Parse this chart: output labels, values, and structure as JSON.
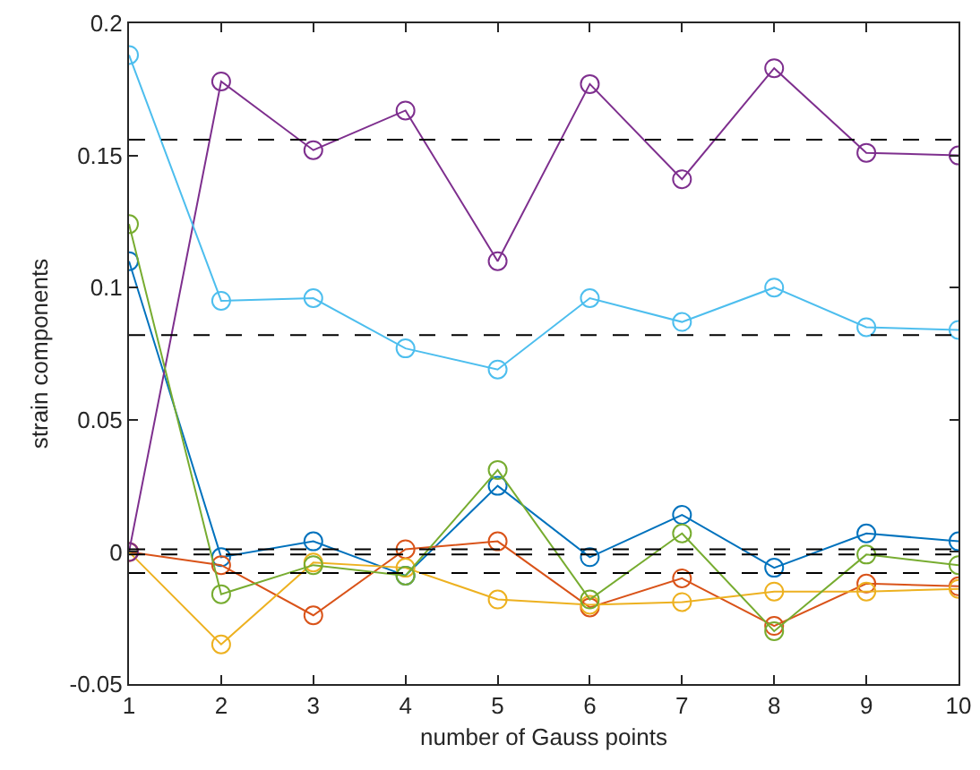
{
  "chart_data": {
    "type": "line",
    "xlabel": "number of Gauss points",
    "ylabel": "strain components",
    "x": [
      1,
      2,
      3,
      4,
      5,
      6,
      7,
      8,
      9,
      10
    ],
    "series": [
      {
        "color": "#0072bd",
        "values": [
          0.11,
          -0.002,
          0.004,
          -0.009,
          0.025,
          -0.002,
          0.014,
          -0.006,
          0.007,
          0.004
        ]
      },
      {
        "color": "#d95319",
        "values": [
          0,
          -0.005,
          -0.024,
          0.001,
          0.004,
          -0.021,
          -0.01,
          -0.028,
          -0.012,
          -0.013
        ]
      },
      {
        "color": "#edb120",
        "values": [
          0,
          -0.035,
          -0.004,
          -0.006,
          -0.018,
          -0.02,
          -0.019,
          -0.015,
          -0.015,
          -0.014
        ]
      },
      {
        "color": "#7e2f8e",
        "values": [
          0,
          0.178,
          0.152,
          0.167,
          0.11,
          0.177,
          0.141,
          0.183,
          0.151,
          0.15
        ]
      },
      {
        "color": "#77ac30",
        "values": [
          0.124,
          -0.016,
          -0.005,
          -0.009,
          0.031,
          -0.018,
          0.007,
          -0.03,
          -0.001,
          -0.005
        ]
      },
      {
        "color": "#4dbeee",
        "values": [
          0.188,
          0.095,
          0.096,
          0.077,
          0.069,
          0.096,
          0.087,
          0.1,
          0.085,
          0.084
        ]
      }
    ],
    "ref_lines": [
      {
        "axis": "y",
        "value": 0.156,
        "color": "#000000",
        "line_style": "dashed"
      },
      {
        "axis": "y",
        "value": 0.082,
        "color": "#000000",
        "line_style": "dashed"
      },
      {
        "axis": "y",
        "value": 0.001,
        "color": "#000000",
        "line_style": "dashed"
      },
      {
        "axis": "y",
        "value": -0.001,
        "color": "#000000",
        "line_style": "dashed"
      },
      {
        "axis": "y",
        "value": -0.008,
        "color": "#000000",
        "line_style": "dashed"
      }
    ],
    "xlim": [
      1,
      10
    ],
    "xticks": [
      1,
      2,
      3,
      4,
      5,
      6,
      7,
      8,
      9,
      10
    ],
    "ylim": [
      -0.05,
      0.2
    ],
    "yticks": [
      -0.05,
      0,
      0.05,
      0.1,
      0.15,
      0.2
    ],
    "marker": "circle",
    "line_style": "solid"
  }
}
